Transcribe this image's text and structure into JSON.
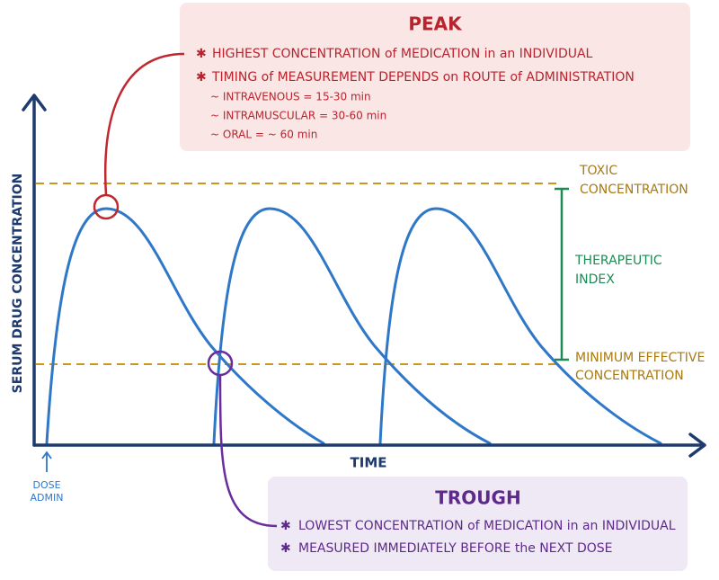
{
  "peak": {
    "title": "PEAK",
    "bullets": [
      "HIGHEST CONCENTRATION of MEDICATION in an INDIVIDUAL",
      "TIMING of MEASUREMENT DEPENDS on ROUTE of ADMINISTRATION"
    ],
    "routes": [
      "~ INTRAVENOUS = 15-30 min",
      "~ INTRAMUSCULAR = 30-60 min",
      "~ ORAL = ~ 60 min"
    ]
  },
  "trough": {
    "title": "TROUGH",
    "bullets": [
      "LOWEST CONCENTRATION of MEDICATION in an INDIVIDUAL",
      "MEASURED IMMEDIATELY BEFORE the NEXT DOSE"
    ]
  },
  "axes": {
    "y_label": "SERUM DRUG CONCENTRATION",
    "x_label": "TIME",
    "dose": [
      "DOSE",
      "ADMIN"
    ]
  },
  "levels": {
    "toxic": [
      "TOXIC",
      "CONCENTRATION"
    ],
    "therapeutic": [
      "THERAPEUTIC",
      "INDEX"
    ],
    "minimum": [
      "MINIMUM EFFECTIVE",
      "CONCENTRATION"
    ]
  }
}
